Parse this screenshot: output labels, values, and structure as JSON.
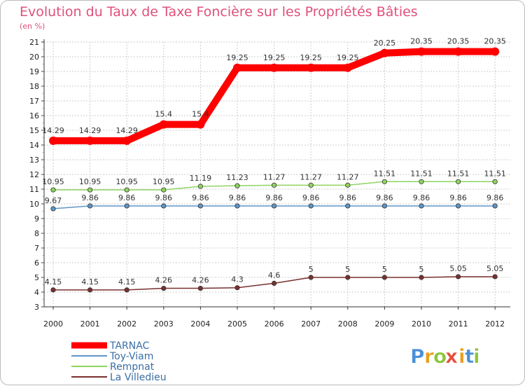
{
  "chart_data": {
    "type": "line",
    "title": "Evolution du Taux de Taxe Foncière sur les Propriétés Bâties",
    "subtitle": "(en %)",
    "x": [
      "2000",
      "2001",
      "2002",
      "2003",
      "2004",
      "2005",
      "2006",
      "2007",
      "2008",
      "2009",
      "2010",
      "2011",
      "2012"
    ],
    "ylim": [
      3,
      21
    ],
    "yticks": [
      3,
      4,
      5,
      6,
      7,
      8,
      9,
      10,
      11,
      12,
      13,
      14,
      15,
      16,
      17,
      18,
      19,
      20,
      21
    ],
    "legend_position": "bottom-left",
    "series": [
      {
        "name": "TARNAC",
        "color": "#ff0000",
        "values": [
          14.29,
          14.29,
          14.29,
          15.4,
          15.4,
          19.25,
          19.25,
          19.25,
          19.25,
          20.25,
          20.35,
          20.35,
          20.35
        ],
        "labels": [
          "14.29",
          "14.29",
          "14.29",
          "15.4",
          "15.4",
          "19.25",
          "19.25",
          "19.25",
          "19.25",
          "20.25",
          "20.35",
          "20.35",
          "20.35"
        ]
      },
      {
        "name": "Toy-Viam",
        "color": "#5f95c6",
        "values": [
          9.67,
          9.86,
          9.86,
          9.86,
          9.86,
          9.86,
          9.86,
          9.86,
          9.86,
          9.86,
          9.86,
          9.86,
          9.86
        ],
        "labels": [
          "9.67",
          "9.86",
          "9.86",
          "9.86",
          "9.86",
          "9.86",
          "9.86",
          "9.86",
          "9.86",
          "9.86",
          "9.86",
          "9.86",
          "9.86"
        ]
      },
      {
        "name": "Rempnat",
        "color": "#8fd460",
        "values": [
          10.95,
          10.95,
          10.95,
          10.95,
          11.19,
          11.23,
          11.27,
          11.27,
          11.27,
          11.51,
          11.51,
          11.51,
          11.51
        ],
        "labels": [
          "10.95",
          "10.95",
          "10.95",
          "10.95",
          "11.19",
          "11.23",
          "11.27",
          "11.27",
          "11.27",
          "11.51",
          "11.51",
          "11.51",
          "11.51"
        ]
      },
      {
        "name": "La Villedieu",
        "color": "#7a3030",
        "values": [
          4.15,
          4.15,
          4.15,
          4.26,
          4.26,
          4.3,
          4.6,
          5,
          5,
          5,
          5,
          5.05,
          5.05
        ],
        "labels": [
          "4.15",
          "4.15",
          "4.15",
          "4.26",
          "4.26",
          "4.3",
          "4.6",
          "5",
          "5",
          "5",
          "5",
          "5.05",
          "5.05"
        ]
      }
    ]
  },
  "logo": {
    "letters": [
      "P",
      "r",
      "o",
      "x",
      "i",
      "t",
      "i"
    ],
    "colors": [
      "#4a90d9",
      "#e8a020",
      "#8cc63f",
      "#e84c3d",
      "#e8a020",
      "#4a90d9",
      "#8cc63f"
    ]
  }
}
